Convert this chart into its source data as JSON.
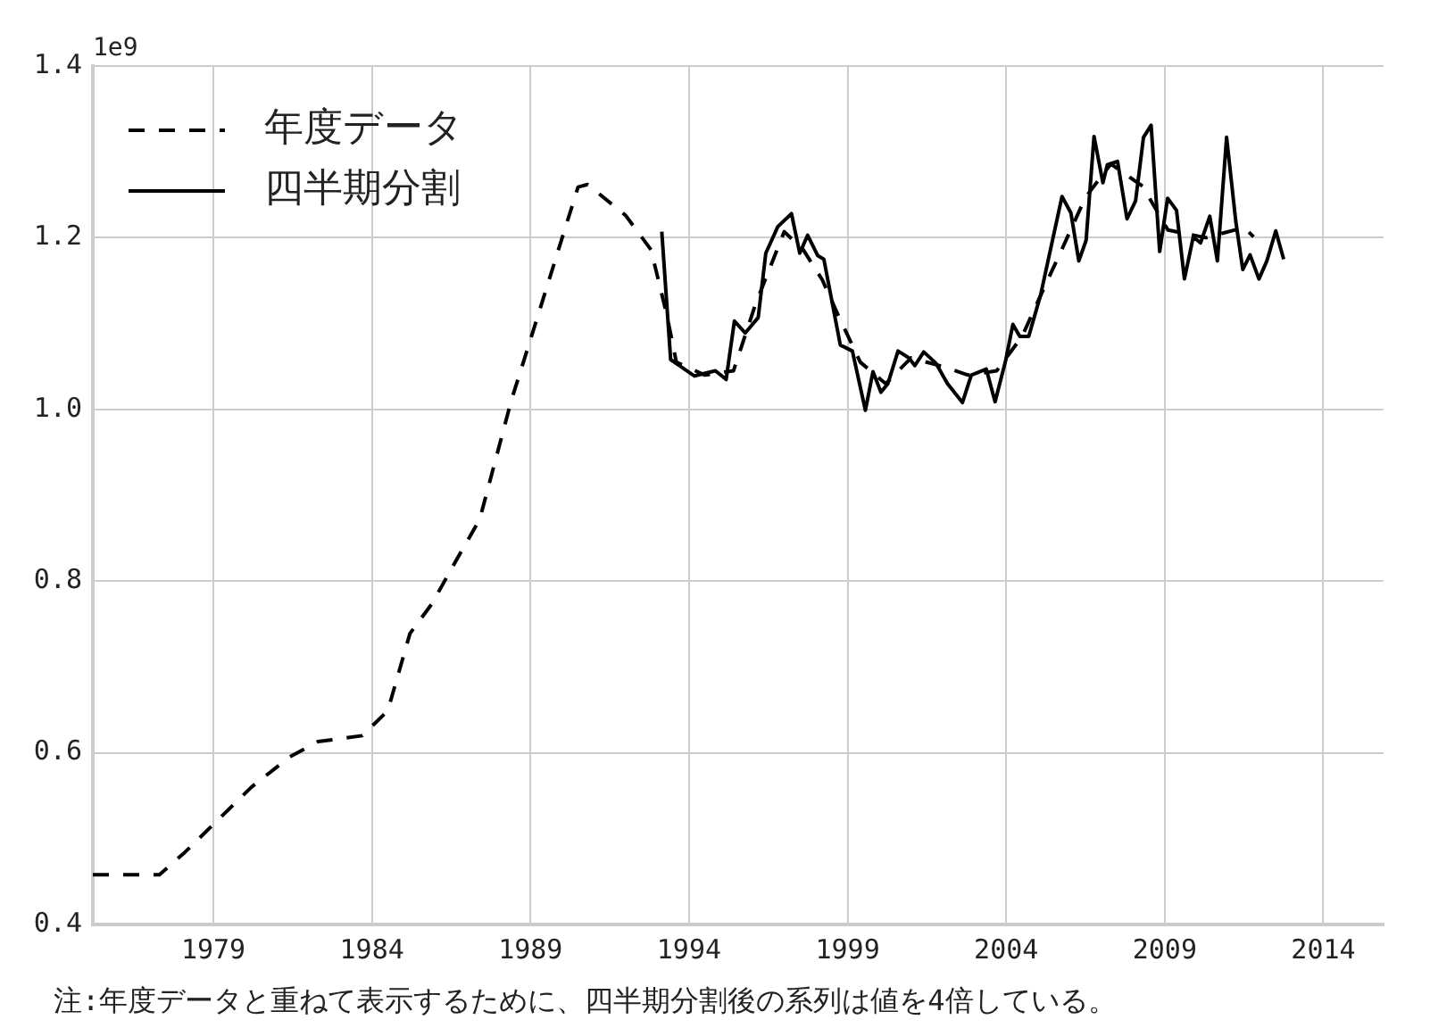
{
  "chart_data": {
    "type": "line",
    "xlim": [
      1975.2,
      2015.9
    ],
    "ylim": [
      0.4,
      1.4
    ],
    "xticks": [
      1979,
      1984,
      1989,
      1994,
      1999,
      2004,
      2009,
      2014
    ],
    "yticks": [
      0.4,
      0.6,
      0.8,
      {
        "value": 1,
        "label": "1.0"
      },
      1.2,
      1.4
    ],
    "grid": true,
    "legend": "top left",
    "marker": "none",
    "annotations": [
      "1e9",
      "注:年度データと重ねて表示するために、四半期分割後の系列は値を4倍している。"
    ],
    "series": [
      {
        "name": "年度データ",
        "color": "#000000",
        "line_style": "dashed",
        "x": [
          1975.2,
          1977.3,
          1978.1,
          1980.2,
          1981.4,
          1982.3,
          1983.7,
          1984.5,
          1985.2,
          1985.9,
          1986.5,
          1987.4,
          1988.4,
          1989.2,
          1990.0,
          1990.5,
          1990.8,
          1992.0,
          1992.8,
          1993.3,
          1993.6,
          1994.5,
          1995.4,
          1996.1,
          1997.0,
          1997.6,
          1998.2,
          1998.7,
          1999.4,
          2000.2,
          2001.0,
          2002.0,
          2002.8,
          2003.7,
          2004.5,
          2005.2,
          2005.8,
          2006.5,
          2007.3,
          2008.3,
          2009.1,
          2010.3,
          2011.5,
          2011.8
        ],
        "values": [
          0.458,
          0.458,
          0.484,
          0.56,
          0.595,
          0.613,
          0.62,
          0.649,
          0.739,
          0.774,
          0.814,
          0.872,
          1.011,
          1.105,
          1.2,
          1.259,
          1.262,
          1.226,
          1.186,
          1.11,
          1.055,
          1.04,
          1.045,
          1.123,
          1.207,
          1.186,
          1.151,
          1.11,
          1.055,
          1.03,
          1.06,
          1.05,
          1.04,
          1.045,
          1.085,
          1.142,
          1.19,
          1.247,
          1.286,
          1.26,
          1.209,
          1.2,
          1.212,
          1.201
        ]
      },
      {
        "name": "四半期分割",
        "color": "#000000",
        "line_style": "solid",
        "x": [
          1993.14,
          1993.42,
          1994.17,
          1994.83,
          1995.17,
          1995.43,
          1995.77,
          1996.18,
          1996.42,
          1996.8,
          1997.23,
          1997.49,
          1997.74,
          1998.06,
          1998.25,
          1998.77,
          1999.15,
          1999.56,
          1999.8,
          2000.05,
          2000.27,
          2000.59,
          2000.93,
          2001.12,
          2001.4,
          2001.78,
          2002.15,
          2002.62,
          2002.9,
          2003.37,
          2003.65,
          2003.99,
          2004.21,
          2004.43,
          2004.71,
          2005.09,
          2005.76,
          2006.04,
          2006.29,
          2006.52,
          2006.77,
          2007.05,
          2007.19,
          2007.51,
          2007.81,
          2008.08,
          2008.33,
          2008.57,
          2008.84,
          2009.09,
          2009.37,
          2009.62,
          2009.9,
          2010.13,
          2010.42,
          2010.66,
          2010.95,
          2011.24,
          2011.46,
          2011.69,
          2011.97,
          2012.22,
          2012.5,
          2012.75
        ],
        "values": [
          1.207,
          1.058,
          1.039,
          1.045,
          1.035,
          1.103,
          1.089,
          1.107,
          1.182,
          1.213,
          1.228,
          1.182,
          1.203,
          1.179,
          1.175,
          1.075,
          1.068,
          0.999,
          1.044,
          1.02,
          1.03,
          1.068,
          1.06,
          1.051,
          1.067,
          1.054,
          1.03,
          1.008,
          1.04,
          1.047,
          1.009,
          1.058,
          1.099,
          1.085,
          1.085,
          1.134,
          1.248,
          1.229,
          1.173,
          1.197,
          1.318,
          1.264,
          1.285,
          1.289,
          1.222,
          1.243,
          1.317,
          1.331,
          1.184,
          1.246,
          1.232,
          1.152,
          1.201,
          1.194,
          1.225,
          1.173,
          1.317,
          1.219,
          1.163,
          1.18,
          1.152,
          1.173,
          1.208,
          1.175
        ]
      }
    ]
  }
}
